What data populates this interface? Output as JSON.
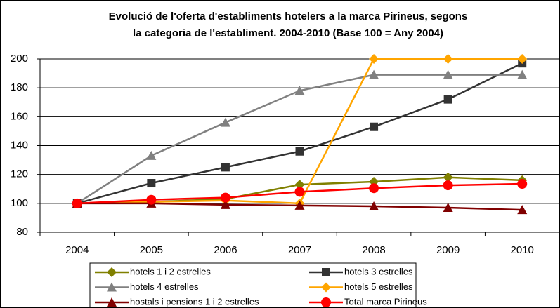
{
  "chart_data": {
    "type": "line",
    "title": [
      "Evolució de l'oferta d'establiments hotelers a la marca Pirineus, segons",
      "la categoria de l'establiment. 2004-2010 (Base 100 = Any 2004)"
    ],
    "categories": [
      "2004",
      "2005",
      "2006",
      "2007",
      "2008",
      "2009",
      "2010"
    ],
    "series": [
      {
        "name": "hotels 1 i 2 estrelles",
        "color": "#808000",
        "marker": "diamond",
        "values": [
          100,
          101,
          103,
          113,
          115,
          118,
          116
        ]
      },
      {
        "name": "hotels 3 estrelles",
        "color": "#333333",
        "marker": "square",
        "values": [
          100,
          114,
          125,
          136,
          153,
          172,
          197
        ]
      },
      {
        "name": "hotels 4 estrelles",
        "color": "#808080",
        "marker": "triangle",
        "values": [
          100,
          133,
          156,
          178,
          189,
          189,
          189
        ]
      },
      {
        "name": "hotels 5 estrelles",
        "color": "#FFA500",
        "marker": "diamond",
        "values": [
          100,
          101,
          102,
          100,
          200,
          200,
          200
        ]
      },
      {
        "name": "hostals i pensions 1 i 2 estrelles",
        "color": "#800000",
        "marker": "triangle",
        "values": [
          100,
          100,
          99,
          98.5,
          98,
          97,
          95.5
        ]
      },
      {
        "name": "Total marca Pirineus",
        "color": "#FF0000",
        "marker": "circle",
        "values": [
          100,
          102.5,
          104,
          108,
          110.5,
          112.5,
          113.5
        ]
      }
    ],
    "ylim": [
      80,
      200
    ],
    "yticks": [
      80,
      100,
      120,
      140,
      160,
      180,
      200
    ],
    "grid": true
  }
}
